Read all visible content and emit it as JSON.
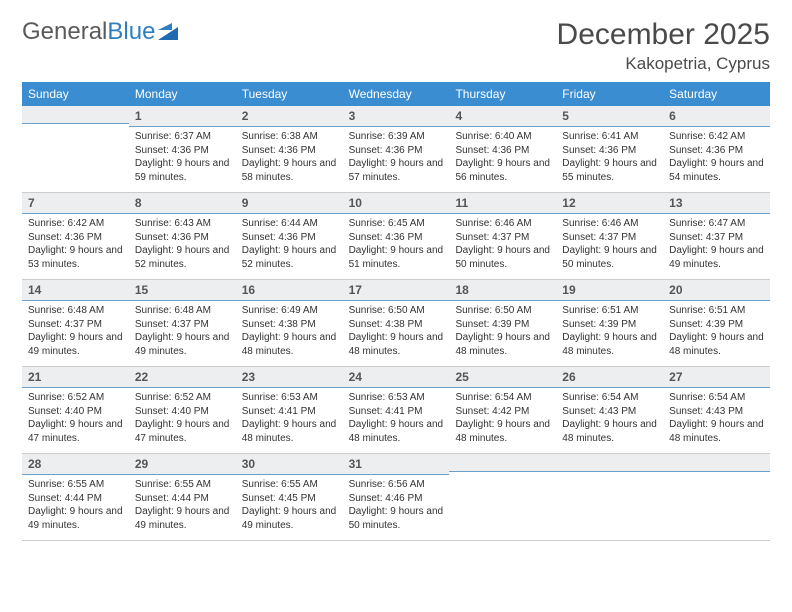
{
  "logo": {
    "text1": "General",
    "text2": "Blue"
  },
  "title": "December 2025",
  "location": "Kakopetria, Cyprus",
  "colors": {
    "header_bg": "#3b8dd1",
    "header_text": "#ffffff",
    "daynum_bg": "#eceeef",
    "daynum_border": "#6a9fc9",
    "text": "#333333",
    "title_text": "#4a4a4a",
    "logo_gray": "#5a5a5a",
    "logo_blue": "#2f7fc0"
  },
  "day_names": [
    "Sunday",
    "Monday",
    "Tuesday",
    "Wednesday",
    "Thursday",
    "Friday",
    "Saturday"
  ],
  "weeks": [
    [
      null,
      {
        "n": "1",
        "sunrise": "6:37 AM",
        "sunset": "4:36 PM",
        "daylight": "9 hours and 59 minutes."
      },
      {
        "n": "2",
        "sunrise": "6:38 AM",
        "sunset": "4:36 PM",
        "daylight": "9 hours and 58 minutes."
      },
      {
        "n": "3",
        "sunrise": "6:39 AM",
        "sunset": "4:36 PM",
        "daylight": "9 hours and 57 minutes."
      },
      {
        "n": "4",
        "sunrise": "6:40 AM",
        "sunset": "4:36 PM",
        "daylight": "9 hours and 56 minutes."
      },
      {
        "n": "5",
        "sunrise": "6:41 AM",
        "sunset": "4:36 PM",
        "daylight": "9 hours and 55 minutes."
      },
      {
        "n": "6",
        "sunrise": "6:42 AM",
        "sunset": "4:36 PM",
        "daylight": "9 hours and 54 minutes."
      }
    ],
    [
      {
        "n": "7",
        "sunrise": "6:42 AM",
        "sunset": "4:36 PM",
        "daylight": "9 hours and 53 minutes."
      },
      {
        "n": "8",
        "sunrise": "6:43 AM",
        "sunset": "4:36 PM",
        "daylight": "9 hours and 52 minutes."
      },
      {
        "n": "9",
        "sunrise": "6:44 AM",
        "sunset": "4:36 PM",
        "daylight": "9 hours and 52 minutes."
      },
      {
        "n": "10",
        "sunrise": "6:45 AM",
        "sunset": "4:36 PM",
        "daylight": "9 hours and 51 minutes."
      },
      {
        "n": "11",
        "sunrise": "6:46 AM",
        "sunset": "4:37 PM",
        "daylight": "9 hours and 50 minutes."
      },
      {
        "n": "12",
        "sunrise": "6:46 AM",
        "sunset": "4:37 PM",
        "daylight": "9 hours and 50 minutes."
      },
      {
        "n": "13",
        "sunrise": "6:47 AM",
        "sunset": "4:37 PM",
        "daylight": "9 hours and 49 minutes."
      }
    ],
    [
      {
        "n": "14",
        "sunrise": "6:48 AM",
        "sunset": "4:37 PM",
        "daylight": "9 hours and 49 minutes."
      },
      {
        "n": "15",
        "sunrise": "6:48 AM",
        "sunset": "4:37 PM",
        "daylight": "9 hours and 49 minutes."
      },
      {
        "n": "16",
        "sunrise": "6:49 AM",
        "sunset": "4:38 PM",
        "daylight": "9 hours and 48 minutes."
      },
      {
        "n": "17",
        "sunrise": "6:50 AM",
        "sunset": "4:38 PM",
        "daylight": "9 hours and 48 minutes."
      },
      {
        "n": "18",
        "sunrise": "6:50 AM",
        "sunset": "4:39 PM",
        "daylight": "9 hours and 48 minutes."
      },
      {
        "n": "19",
        "sunrise": "6:51 AM",
        "sunset": "4:39 PM",
        "daylight": "9 hours and 48 minutes."
      },
      {
        "n": "20",
        "sunrise": "6:51 AM",
        "sunset": "4:39 PM",
        "daylight": "9 hours and 48 minutes."
      }
    ],
    [
      {
        "n": "21",
        "sunrise": "6:52 AM",
        "sunset": "4:40 PM",
        "daylight": "9 hours and 47 minutes."
      },
      {
        "n": "22",
        "sunrise": "6:52 AM",
        "sunset": "4:40 PM",
        "daylight": "9 hours and 47 minutes."
      },
      {
        "n": "23",
        "sunrise": "6:53 AM",
        "sunset": "4:41 PM",
        "daylight": "9 hours and 48 minutes."
      },
      {
        "n": "24",
        "sunrise": "6:53 AM",
        "sunset": "4:41 PM",
        "daylight": "9 hours and 48 minutes."
      },
      {
        "n": "25",
        "sunrise": "6:54 AM",
        "sunset": "4:42 PM",
        "daylight": "9 hours and 48 minutes."
      },
      {
        "n": "26",
        "sunrise": "6:54 AM",
        "sunset": "4:43 PM",
        "daylight": "9 hours and 48 minutes."
      },
      {
        "n": "27",
        "sunrise": "6:54 AM",
        "sunset": "4:43 PM",
        "daylight": "9 hours and 48 minutes."
      }
    ],
    [
      {
        "n": "28",
        "sunrise": "6:55 AM",
        "sunset": "4:44 PM",
        "daylight": "9 hours and 49 minutes."
      },
      {
        "n": "29",
        "sunrise": "6:55 AM",
        "sunset": "4:44 PM",
        "daylight": "9 hours and 49 minutes."
      },
      {
        "n": "30",
        "sunrise": "6:55 AM",
        "sunset": "4:45 PM",
        "daylight": "9 hours and 49 minutes."
      },
      {
        "n": "31",
        "sunrise": "6:56 AM",
        "sunset": "4:46 PM",
        "daylight": "9 hours and 50 minutes."
      },
      null,
      null,
      null
    ]
  ],
  "labels": {
    "sunrise": "Sunrise:",
    "sunset": "Sunset:",
    "daylight": "Daylight:"
  }
}
